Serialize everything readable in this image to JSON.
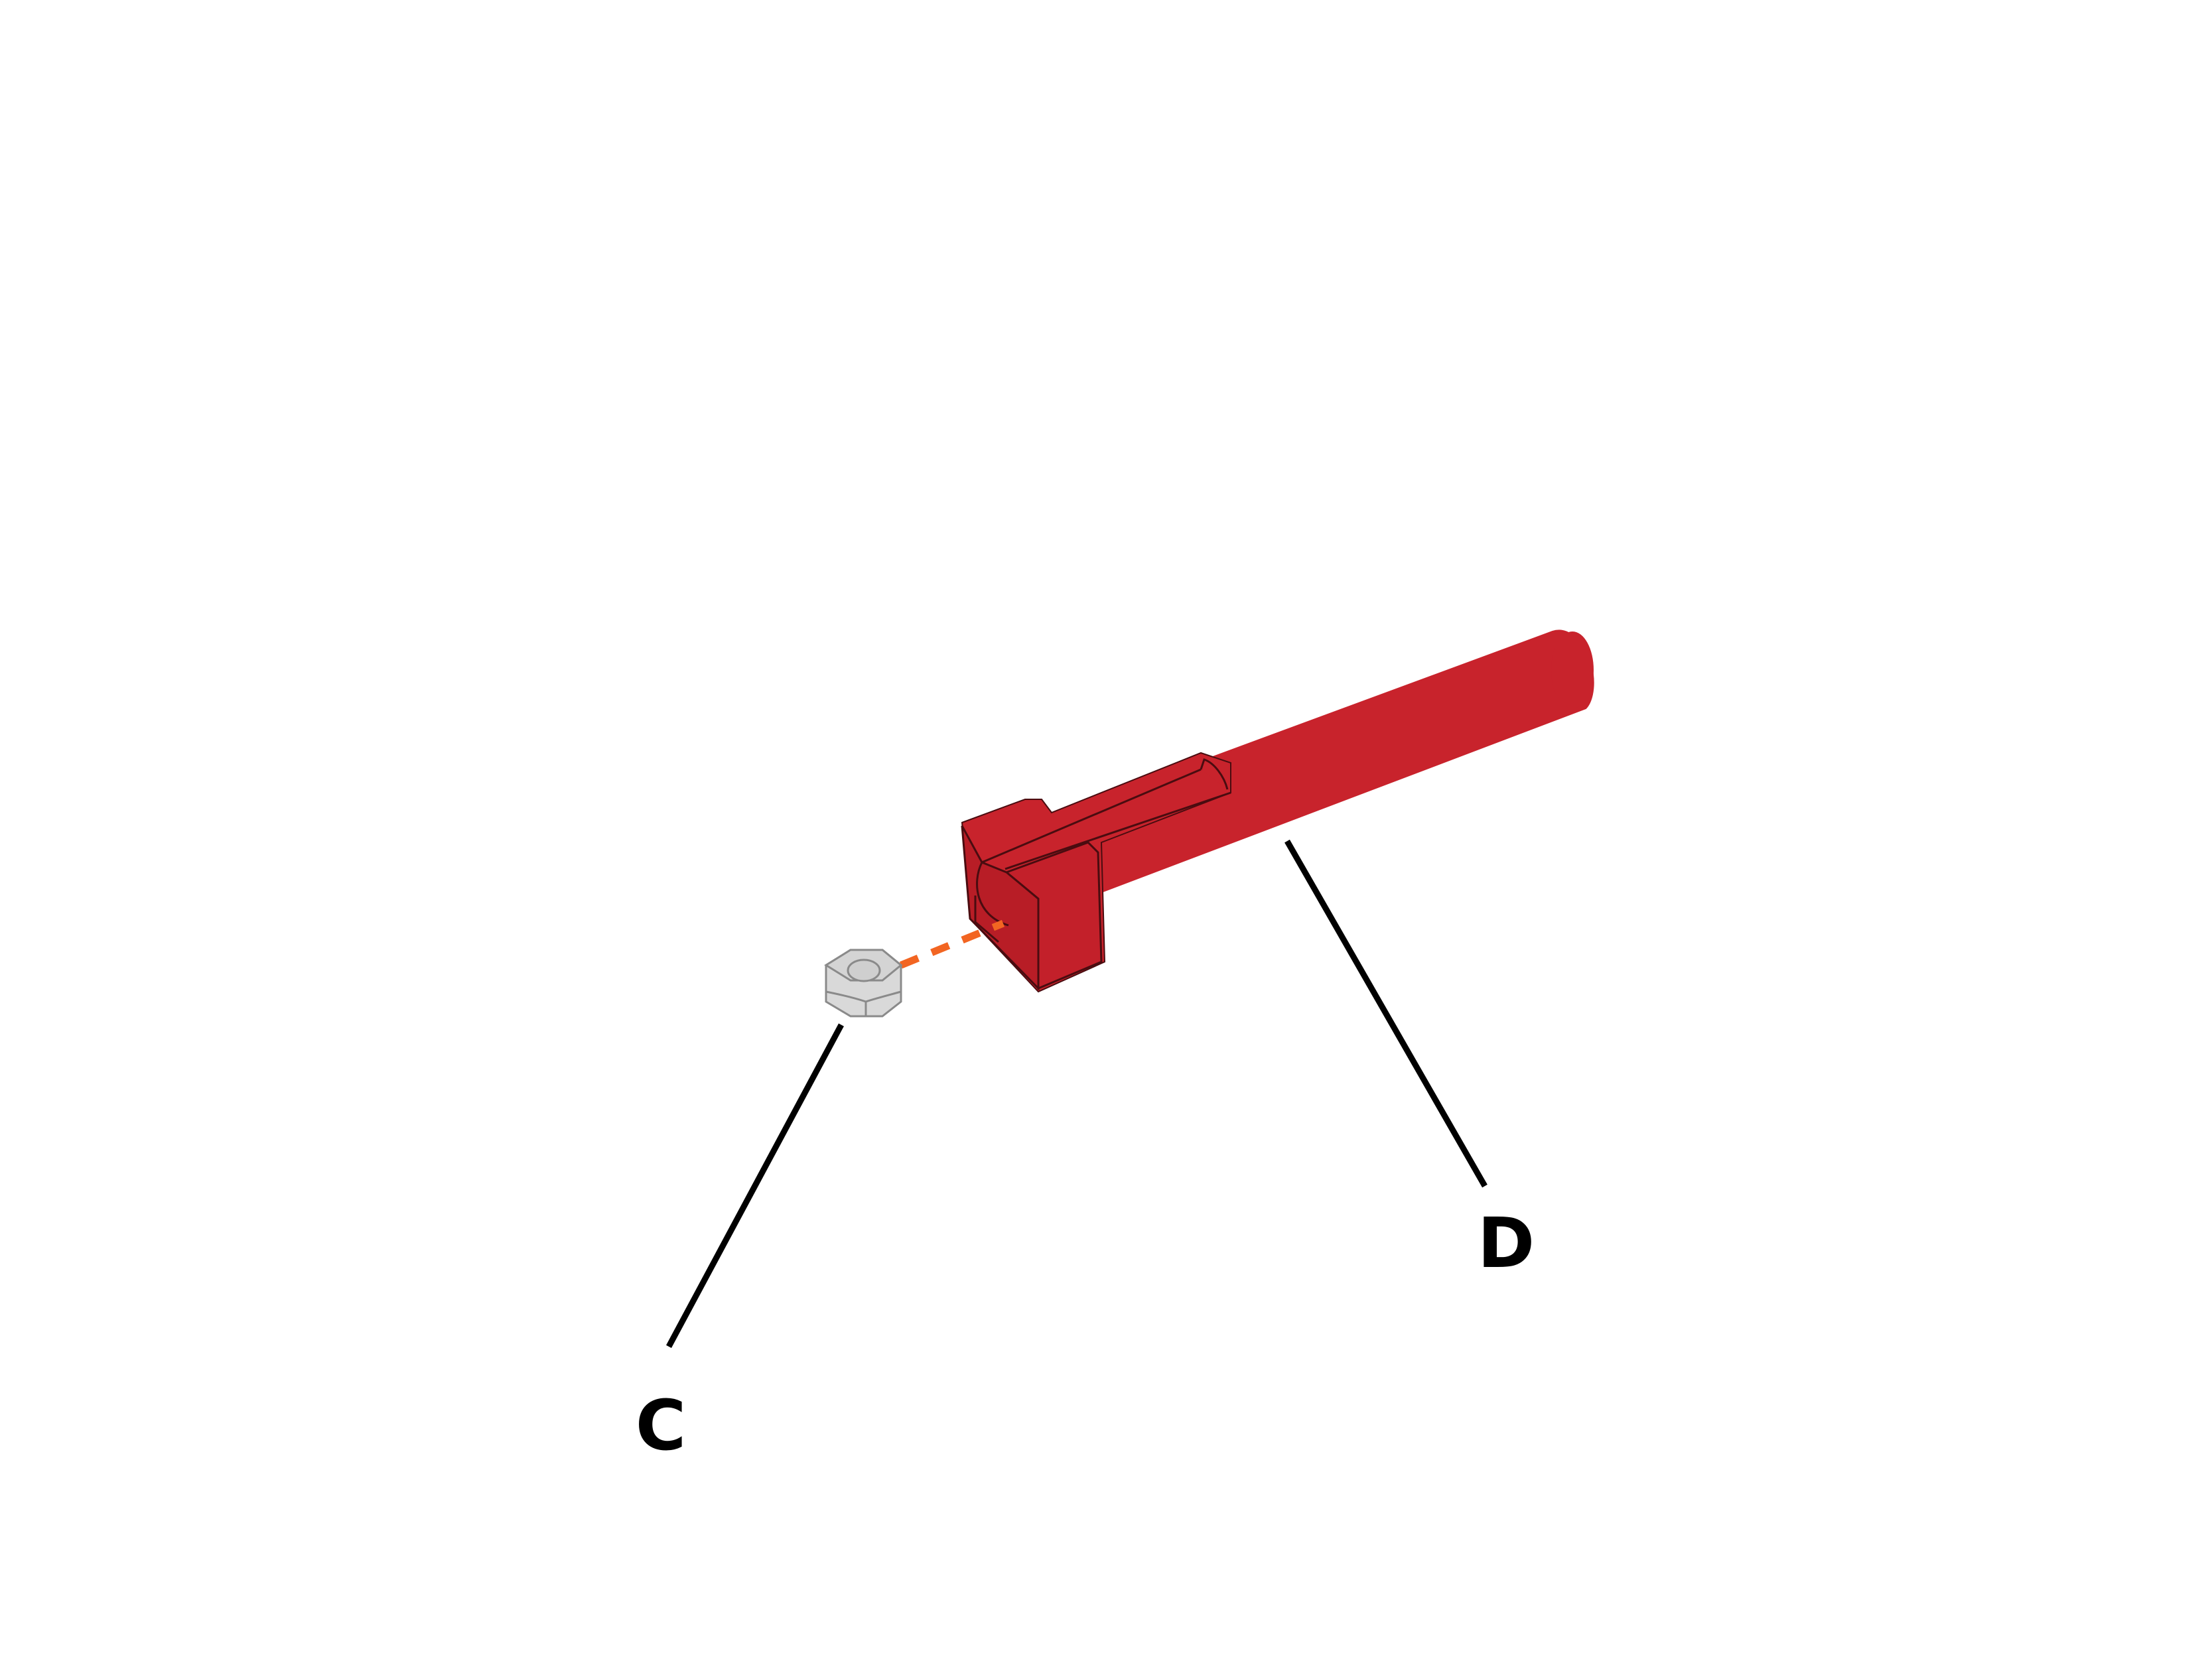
{
  "figure": {
    "type": "exploded assembly diagram",
    "parts": [
      {
        "id": "C",
        "label": "C",
        "part": "hex-nut",
        "color": "#d9d9d9"
      },
      {
        "id": "D",
        "label": "D",
        "part": "red-bar",
        "color": "#c8232c"
      }
    ],
    "colors": {
      "part_red": "#c8232c",
      "part_red_dark": "#8f1a20",
      "edge": "#4a0c10",
      "nut_fill": "#d9d9d9",
      "nut_edge": "#8a8a8a",
      "assembly_line": "#f26522",
      "leader_line": "#000000",
      "label_text": "#000000",
      "background": "#ffffff"
    }
  }
}
